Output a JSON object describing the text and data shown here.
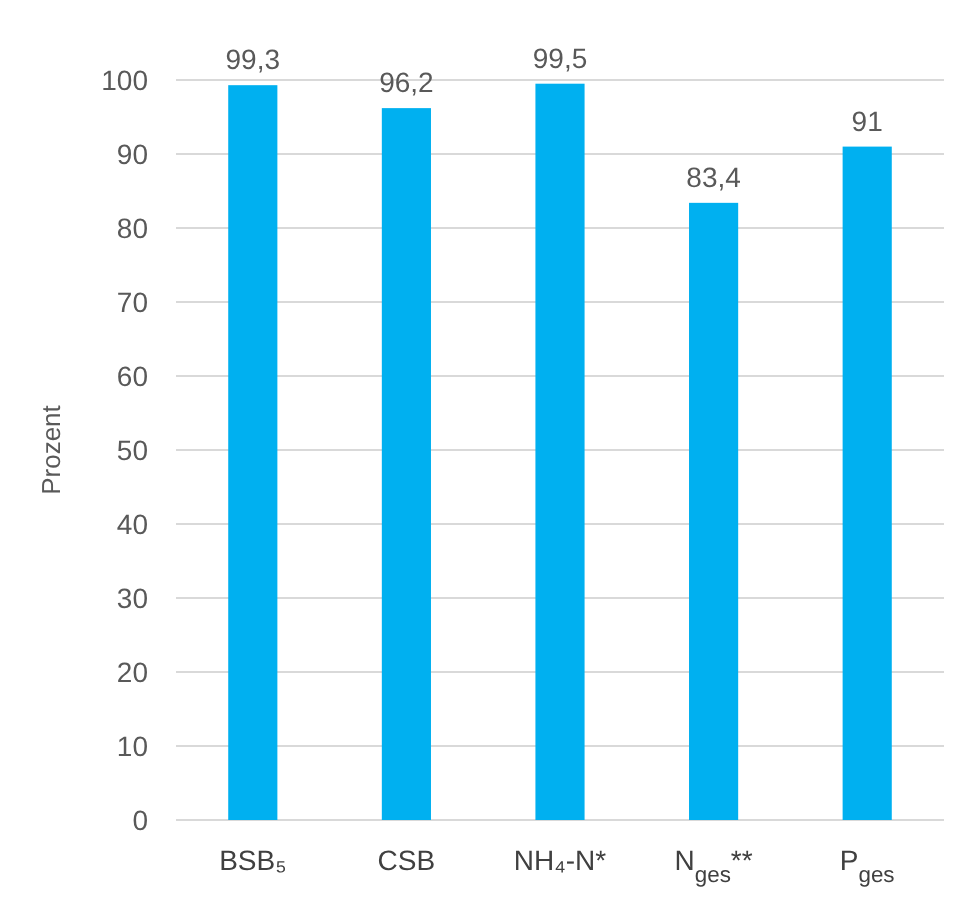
{
  "chart_data": {
    "type": "bar",
    "ylabel": "Prozent",
    "categories": [
      "BSB₅",
      "CSB",
      "NH₄-N*",
      "N$_{ges}$**",
      "P$_{ges}$"
    ],
    "values": [
      99.3,
      96.2,
      99.5,
      83.4,
      91
    ],
    "value_labels": [
      "99,3",
      "96,2",
      "99,5",
      "83,4",
      "91"
    ],
    "color": "#00b0f0",
    "ylim": [
      0,
      100
    ],
    "yticks": [
      0,
      10,
      20,
      30,
      40,
      50,
      60,
      70,
      80,
      90,
      100
    ],
    "grid": "y"
  }
}
